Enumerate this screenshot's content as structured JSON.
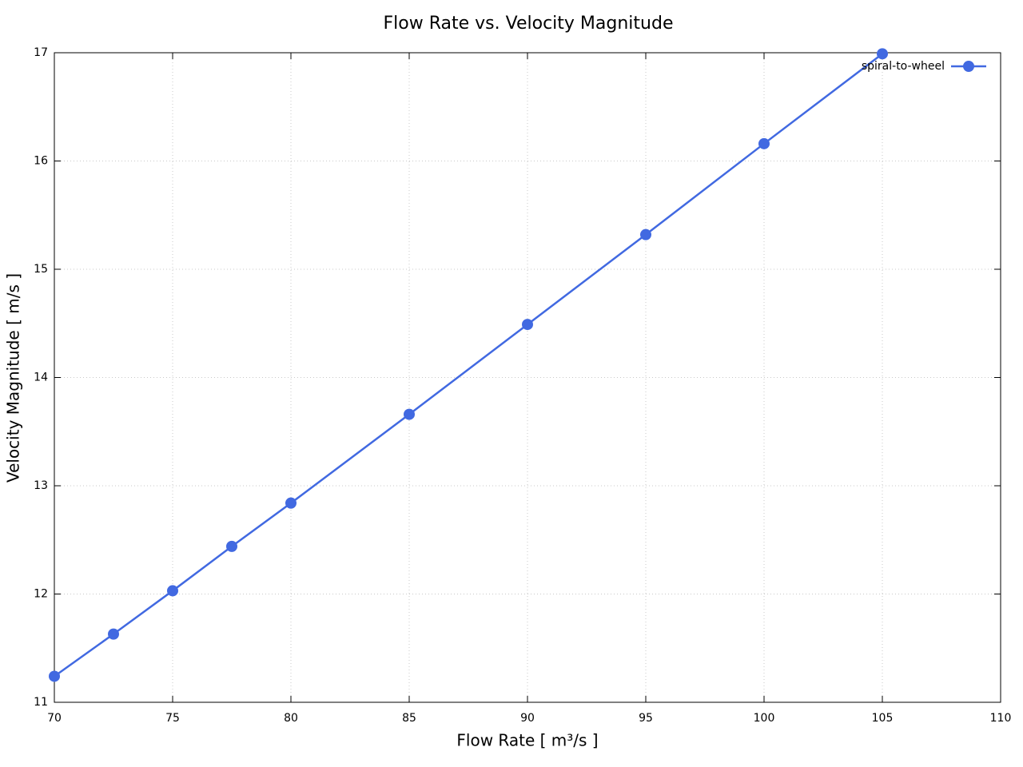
{
  "chart_data": {
    "type": "line",
    "title": "Flow Rate vs. Velocity Magnitude",
    "x_label": "Flow Rate [ m³/s ]",
    "y_label": "Velocity Magnitude [ m/s ]",
    "x": [
      70,
      72.5,
      75,
      77.5,
      80,
      85,
      90,
      95,
      100,
      105
    ],
    "series": [
      {
        "name": "spiral-to-wheel",
        "color": "#4169e1",
        "values": [
          11.24,
          11.63,
          12.03,
          12.44,
          12.84,
          13.66,
          14.49,
          15.32,
          16.16,
          16.99
        ]
      }
    ],
    "xlim": [
      70,
      110
    ],
    "xticks": [
      70,
      75,
      80,
      85,
      90,
      95,
      100,
      105,
      110
    ],
    "ylim": [
      11,
      17
    ],
    "yticks": [
      11,
      12,
      13,
      14,
      15,
      16,
      17
    ],
    "grid": true,
    "legend": "top-right"
  }
}
